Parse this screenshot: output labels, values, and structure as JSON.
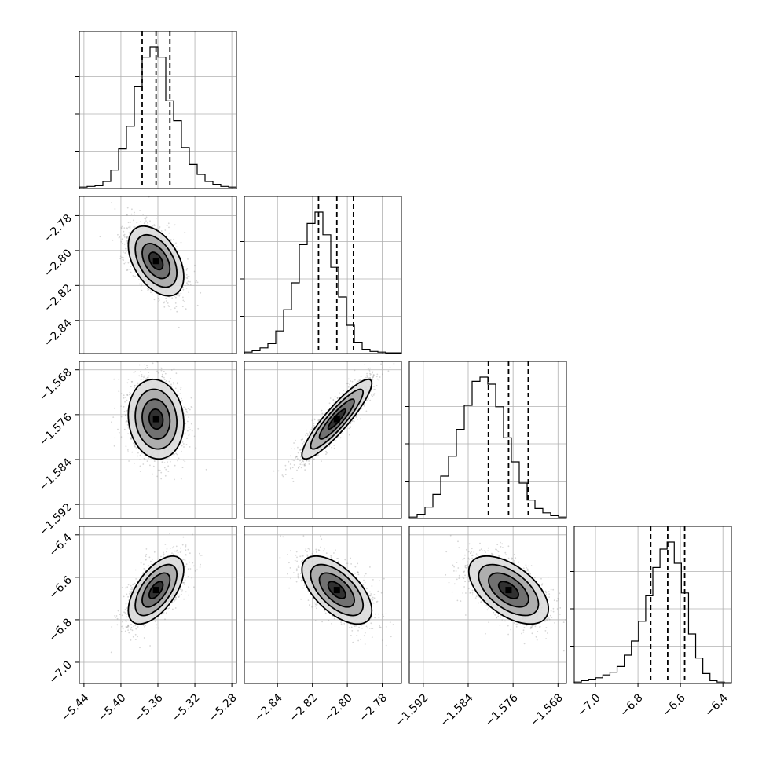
{
  "chart_data": {
    "type": "corner",
    "title": "",
    "parameters": [
      {
        "median": -5.362,
        "q16": -5.377,
        "q84": -5.347,
        "range": [
          -5.445,
          -5.275
        ],
        "ticks": [
          -5.44,
          -5.4,
          -5.36,
          -5.32,
          -5.28
        ],
        "tick_labels": [
          "−5.44",
          "−5.40",
          "−5.36",
          "−5.32",
          "−5.28"
        ],
        "hist": [
          0.01,
          0.015,
          0.02,
          0.05,
          0.13,
          0.28,
          0.44,
          0.72,
          0.93,
          1.0,
          0.93,
          0.62,
          0.48,
          0.29,
          0.17,
          0.1,
          0.05,
          0.03,
          0.015,
          0.01
        ]
      },
      {
        "median": -2.806,
        "q16": -2.8165,
        "q84": -2.7965,
        "range": [
          -2.859,
          -2.769
        ],
        "ticks": [
          -2.84,
          -2.82,
          -2.8,
          -2.78
        ],
        "tick_labels": [
          "−2.84",
          "−2.82",
          "−2.80",
          "−2.78"
        ],
        "hist": [
          0.01,
          0.02,
          0.04,
          0.07,
          0.16,
          0.31,
          0.5,
          0.77,
          0.92,
          1.0,
          0.84,
          0.61,
          0.4,
          0.2,
          0.08,
          0.03,
          0.015,
          0.01,
          0.005,
          0.005
        ]
      },
      {
        "median": -1.5768,
        "q16": -1.5804,
        "q84": -1.5733,
        "range": [
          -1.5945,
          -1.5665
        ],
        "ticks": [
          -1.592,
          -1.584,
          -1.576,
          -1.568
        ],
        "tick_labels": [
          "−1.592",
          "−1.584",
          "−1.576",
          "−1.568"
        ],
        "hist": [
          0.01,
          0.03,
          0.08,
          0.17,
          0.3,
          0.44,
          0.63,
          0.8,
          0.97,
          1.0,
          0.95,
          0.79,
          0.57,
          0.4,
          0.25,
          0.13,
          0.07,
          0.04,
          0.02,
          0.01
        ]
      },
      {
        "median": -6.66,
        "q16": -6.74,
        "q84": -6.58,
        "range": [
          -7.1,
          -6.36
        ],
        "ticks": [
          -7.0,
          -6.8,
          -6.6,
          -6.4
        ],
        "tick_labels": [
          "−7.0",
          "−6.8",
          "−6.6",
          "−6.4"
        ],
        "hist": [
          0.01,
          0.02,
          0.03,
          0.04,
          0.06,
          0.08,
          0.12,
          0.2,
          0.3,
          0.44,
          0.62,
          0.82,
          0.95,
          1.0,
          0.85,
          0.64,
          0.35,
          0.18,
          0.07,
          0.02,
          0.01,
          0.005
        ]
      }
    ],
    "correlations": {
      "1-0": -0.45,
      "2-0": -0.1,
      "2-1": 0.9,
      "3-0": 0.6,
      "3-1": -0.6,
      "3-2": -0.55
    },
    "grid": true,
    "contour_levels_sigma": [
      0.5,
      1.0,
      1.5,
      2.0
    ]
  }
}
